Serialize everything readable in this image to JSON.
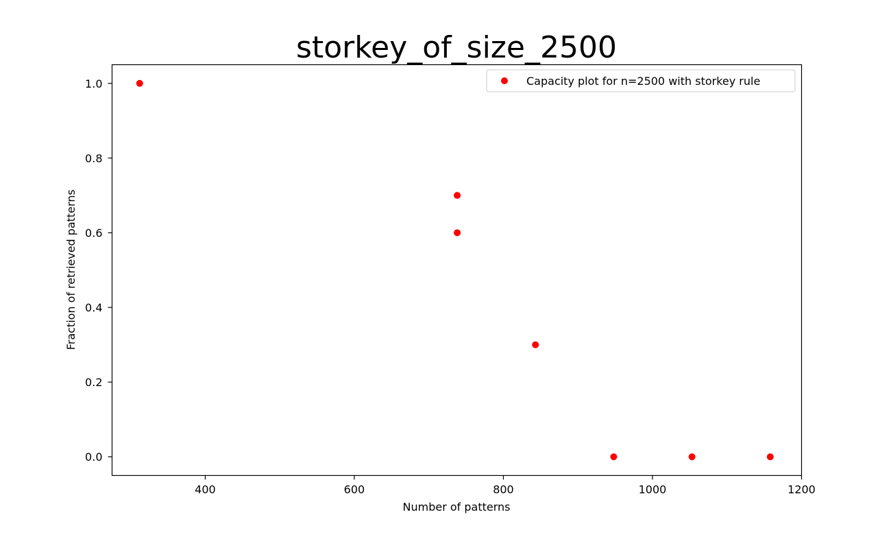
{
  "chart_data": {
    "type": "scatter",
    "title": "storkey_of_size_2500",
    "xlabel": "Number of patterns",
    "ylabel": "Fraction of retrieved patterns",
    "xlim": [
      275,
      1200
    ],
    "ylim": [
      -0.05,
      1.05
    ],
    "x_ticks": [
      400,
      600,
      800,
      1000,
      1200
    ],
    "y_ticks": [
      0.0,
      0.2,
      0.4,
      0.6,
      0.8,
      1.0
    ],
    "x_tick_labels": [
      "400",
      "600",
      "800",
      "1000",
      "1200"
    ],
    "y_tick_labels": [
      "0.0",
      "0.2",
      "0.4",
      "0.6",
      "0.8",
      "1.0"
    ],
    "grid": false,
    "legend_position": "top-right",
    "series": [
      {
        "name": "Capacity plot for n=2500 with storkey rule",
        "color": "#ff0000",
        "marker": "circle",
        "points": [
          {
            "x": 312,
            "y": 1.0
          },
          {
            "x": 738,
            "y": 0.7
          },
          {
            "x": 738,
            "y": 0.6
          },
          {
            "x": 843,
            "y": 0.3
          },
          {
            "x": 948,
            "y": 0.0
          },
          {
            "x": 1053,
            "y": 0.0
          },
          {
            "x": 1158,
            "y": 0.0
          }
        ]
      }
    ]
  }
}
